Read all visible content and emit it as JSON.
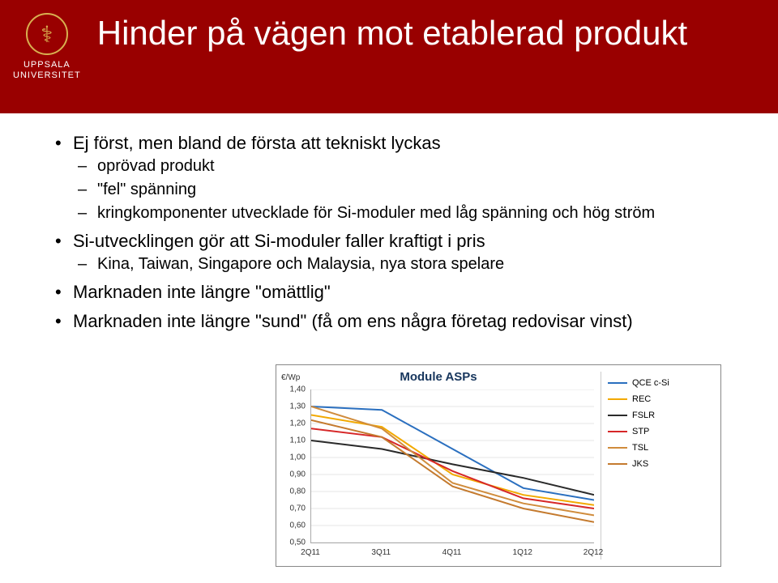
{
  "header": {
    "logo_text_line1": "UPPSALA",
    "logo_text_line2": "UNIVERSITET",
    "title": "Hinder på vägen mot etablerad produkt"
  },
  "bullets": [
    {
      "text": "Ej först, men bland de första att tekniskt lyckas",
      "sub": [
        "oprövad produkt",
        "\"fel\" spänning",
        "kringkomponenter utvecklade för Si-moduler med låg spänning och hög ström"
      ]
    },
    {
      "text": "Si-utvecklingen gör att Si-moduler faller kraftigt i pris",
      "sub": [
        "Kina, Taiwan, Singapore och Malaysia, nya stora spelare"
      ]
    },
    {
      "text": "Marknaden inte längre \"omättlig\"",
      "sub": []
    },
    {
      "text": "Marknaden inte längre \"sund\" (få om ens några företag redovisar vinst)",
      "sub": []
    }
  ],
  "chart": {
    "title": "Module ASPs",
    "ytitle": "€/Wp",
    "ylim": [
      0.5,
      1.4
    ],
    "yticks": [
      "1,40",
      "1,30",
      "1,20",
      "1,10",
      "1,00",
      "0,90",
      "0,80",
      "0,70",
      "0,60",
      "0,50"
    ],
    "ytick_values": [
      1.4,
      1.3,
      1.2,
      1.1,
      1.0,
      0.9,
      0.8,
      0.7,
      0.6,
      0.5
    ],
    "xlabels": [
      "2Q11",
      "3Q11",
      "4Q11",
      "1Q12",
      "2Q12"
    ],
    "series": [
      {
        "name": "QCE c-Si",
        "color": "#2a6fbf",
        "values": [
          1.3,
          1.28,
          1.05,
          0.82,
          0.75
        ]
      },
      {
        "name": "REC",
        "color": "#f2a900",
        "values": [
          1.25,
          1.18,
          0.9,
          0.78,
          0.72
        ]
      },
      {
        "name": "FSLR",
        "color": "#2a2a2a",
        "values": [
          1.1,
          1.05,
          0.96,
          0.88,
          0.78
        ]
      },
      {
        "name": "STP",
        "color": "#d62728",
        "values": [
          1.17,
          1.12,
          0.92,
          0.76,
          0.7
        ]
      },
      {
        "name": "TSL",
        "color": "#d08c3c",
        "values": [
          1.3,
          1.17,
          0.85,
          0.73,
          0.66
        ]
      },
      {
        "name": "JKS",
        "color": "#c47a2e",
        "values": [
          1.22,
          1.12,
          0.83,
          0.7,
          0.62
        ]
      }
    ],
    "background": "#ffffff",
    "grid_color": "#cccccc",
    "title_color": "#17365d",
    "title_fontsize": 15,
    "label_fontsize": 10
  }
}
